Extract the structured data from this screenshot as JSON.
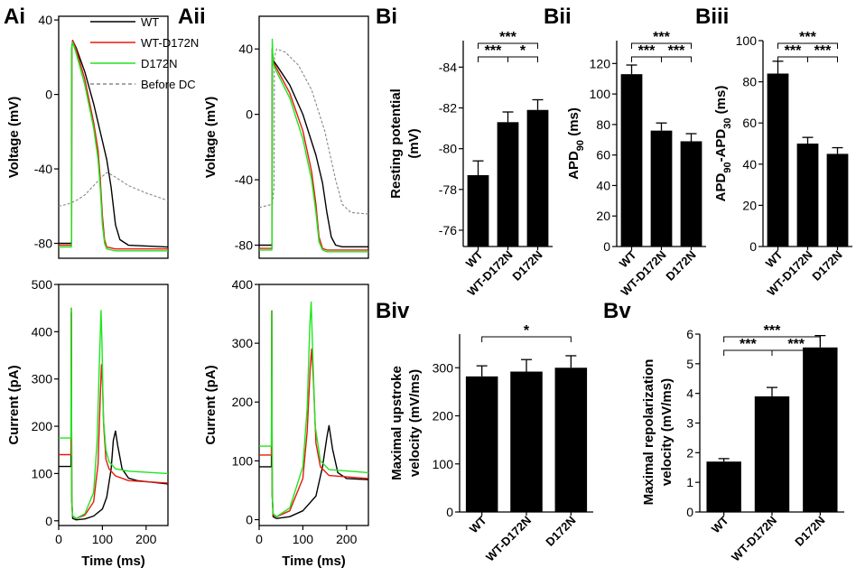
{
  "panel_labels": {
    "Ai": "Ai",
    "Aii": "Aii",
    "Bi": "Bi",
    "Bii": "Bii",
    "Biii": "Biii",
    "Biv": "Biv",
    "Bv": "Bv"
  },
  "colors": {
    "WT": "#000000",
    "WT-D172N": "#e8180c",
    "D172N": "#1ee61e",
    "Before DC": "#888888",
    "bar": "#000000"
  },
  "legend": [
    {
      "label": "WT",
      "color": "#000000",
      "dash": false
    },
    {
      "label": "WT-D172N",
      "color": "#e8180c",
      "dash": false
    },
    {
      "label": "D172N",
      "color": "#1ee61e",
      "dash": false
    },
    {
      "label": "Before DC",
      "color": "#888888",
      "dash": true
    }
  ],
  "chart_data": [
    {
      "id": "Ai_voltage",
      "type": "line",
      "ylabel": "Voltage (mV)",
      "xlim": [
        0,
        250
      ],
      "ylim": [
        -88,
        42
      ],
      "yticks": [
        -80,
        -40,
        0,
        40
      ],
      "xticks": [],
      "series": [
        {
          "name": "WT",
          "x": [
            0,
            29,
            29.5,
            30,
            32,
            40,
            60,
            80,
            100,
            110,
            120,
            125,
            130,
            140,
            160,
            250
          ],
          "y": [
            -80,
            -80,
            -78,
            25,
            29,
            25,
            12,
            -5,
            -25,
            -35,
            -50,
            -60,
            -70,
            -78,
            -81,
            -82
          ]
        },
        {
          "name": "WT-D172N",
          "x": [
            0,
            29,
            29.5,
            30,
            32,
            40,
            60,
            80,
            90,
            95,
            100,
            105,
            110,
            130,
            250
          ],
          "y": [
            -81,
            -81,
            -79,
            25,
            29,
            24,
            8,
            -15,
            -30,
            -45,
            -65,
            -78,
            -82,
            -83,
            -83
          ]
        },
        {
          "name": "D172N",
          "x": [
            0,
            29,
            29.5,
            30,
            32,
            40,
            60,
            80,
            90,
            95,
            100,
            105,
            110,
            130,
            250
          ],
          "y": [
            -82,
            -82,
            -80,
            25,
            28,
            22,
            5,
            -18,
            -35,
            -50,
            -70,
            -80,
            -83,
            -84,
            -84
          ]
        },
        {
          "name": "Before DC",
          "x": [
            0,
            20,
            40,
            60,
            80,
            100,
            110,
            120,
            140,
            160,
            200,
            250
          ],
          "y": [
            -60,
            -59,
            -57,
            -54,
            -49,
            -44,
            -42,
            -43,
            -46,
            -49,
            -53,
            -57
          ]
        }
      ]
    },
    {
      "id": "Aii_voltage",
      "type": "line",
      "ylabel": "Voltage (mV)",
      "xlim": [
        0,
        250
      ],
      "ylim": [
        -88,
        60
      ],
      "yticks": [
        -80,
        -40,
        0,
        40
      ],
      "xticks": [],
      "series": [
        {
          "name": "WT",
          "x": [
            0,
            29,
            29.5,
            30,
            32,
            40,
            70,
            100,
            130,
            145,
            155,
            165,
            175,
            190,
            250
          ],
          "y": [
            -80,
            -80,
            -78,
            40,
            33,
            30,
            18,
            0,
            -25,
            -42,
            -60,
            -75,
            -80,
            -81,
            -81
          ]
        },
        {
          "name": "WT-D172N",
          "x": [
            0,
            29,
            29.5,
            30,
            32,
            40,
            70,
            100,
            120,
            130,
            137,
            145,
            155,
            170,
            250
          ],
          "y": [
            -82,
            -82,
            -80,
            40,
            32,
            28,
            13,
            -10,
            -35,
            -55,
            -75,
            -82,
            -83,
            -83,
            -83
          ]
        },
        {
          "name": "D172N",
          "x": [
            0,
            29,
            29.5,
            30,
            32,
            40,
            70,
            100,
            120,
            130,
            137,
            145,
            155,
            170,
            250
          ],
          "y": [
            -83,
            -83,
            -81,
            46,
            31,
            26,
            10,
            -15,
            -40,
            -60,
            -78,
            -83,
            -84,
            -84,
            -84
          ]
        },
        {
          "name": "Before DC",
          "x": [
            0,
            30,
            34,
            35,
            40,
            60,
            90,
            120,
            150,
            175,
            190,
            210,
            250
          ],
          "y": [
            -57,
            -55,
            -45,
            35,
            40,
            38,
            30,
            15,
            -10,
            -40,
            -55,
            -60,
            -61
          ]
        }
      ]
    },
    {
      "id": "Ai_current",
      "type": "line",
      "xlabel": "Time (ms)",
      "ylabel": "Current (pA)",
      "xlim": [
        0,
        250
      ],
      "ylim": [
        -10,
        500
      ],
      "yticks": [
        0,
        100,
        200,
        300,
        400,
        500
      ],
      "xticks": [
        0,
        100,
        200
      ],
      "series": [
        {
          "name": "WT",
          "x": [
            0,
            28,
            29,
            30,
            32,
            40,
            60,
            80,
            100,
            110,
            120,
            125,
            130,
            135,
            145,
            160,
            180,
            250
          ],
          "y": [
            115,
            115,
            440,
            40,
            5,
            2,
            4,
            10,
            25,
            50,
            110,
            170,
            190,
            160,
            110,
            90,
            85,
            78
          ]
        },
        {
          "name": "WT-D172N",
          "x": [
            0,
            28,
            29,
            30,
            32,
            40,
            60,
            80,
            90,
            95,
            98,
            100,
            103,
            108,
            115,
            130,
            160,
            250
          ],
          "y": [
            140,
            140,
            450,
            45,
            10,
            5,
            12,
            40,
            120,
            260,
            330,
            300,
            200,
            130,
            110,
            95,
            85,
            80
          ]
        },
        {
          "name": "D172N",
          "x": [
            0,
            28,
            29,
            30,
            32,
            40,
            60,
            80,
            88,
            93,
            97,
            99,
            102,
            108,
            115,
            130,
            160,
            250
          ],
          "y": [
            175,
            175,
            450,
            40,
            10,
            5,
            15,
            60,
            170,
            330,
            445,
            380,
            220,
            150,
            125,
            110,
            105,
            100
          ]
        }
      ]
    },
    {
      "id": "Aii_current",
      "type": "line",
      "xlabel": "Time (ms)",
      "ylabel": "Current (pA)",
      "xlim": [
        0,
        250
      ],
      "ylim": [
        -10,
        400
      ],
      "yticks": [
        0,
        100,
        200,
        300,
        400
      ],
      "xticks": [
        0,
        100,
        200
      ],
      "series": [
        {
          "name": "WT",
          "x": [
            0,
            28,
            29,
            30,
            32,
            40,
            70,
            100,
            130,
            145,
            155,
            160,
            168,
            180,
            200,
            250
          ],
          "y": [
            90,
            90,
            355,
            40,
            5,
            2,
            5,
            15,
            40,
            90,
            140,
            160,
            120,
            80,
            70,
            68
          ]
        },
        {
          "name": "WT-D172N",
          "x": [
            0,
            28,
            29,
            30,
            32,
            40,
            70,
            100,
            110,
            117,
            120,
            124,
            130,
            140,
            160,
            250
          ],
          "y": [
            110,
            110,
            355,
            45,
            8,
            5,
            15,
            70,
            150,
            260,
            290,
            240,
            130,
            90,
            75,
            70
          ]
        },
        {
          "name": "D172N",
          "x": [
            0,
            28,
            29,
            30,
            32,
            40,
            70,
            100,
            110,
            116,
            119,
            122,
            128,
            140,
            160,
            250
          ],
          "y": [
            125,
            125,
            355,
            40,
            10,
            5,
            20,
            90,
            190,
            330,
            370,
            300,
            160,
            100,
            85,
            80
          ]
        }
      ]
    },
    {
      "id": "Bi",
      "type": "bar",
      "ylabel": "Resting potential (mV)",
      "categories": [
        "WT",
        "WT-D172N",
        "D172N"
      ],
      "values": [
        -78.7,
        -81.3,
        -81.9
      ],
      "errors": [
        0.7,
        0.5,
        0.5
      ],
      "ylim": [
        -75.2,
        -85.3
      ],
      "yticks": [
        -76,
        -78,
        -80,
        -82,
        -84
      ],
      "significance": [
        {
          "pair": [
            0,
            1
          ],
          "label": "***"
        },
        {
          "pair": [
            1,
            2
          ],
          "label": "*"
        },
        {
          "pair": [
            0,
            2
          ],
          "label": "***"
        }
      ]
    },
    {
      "id": "Bii",
      "type": "bar",
      "ylabel": "APD90 (ms)",
      "categories": [
        "WT",
        "WT-D172N",
        "D172N"
      ],
      "values": [
        113,
        76,
        69
      ],
      "errors": [
        6,
        5,
        5
      ],
      "ylim": [
        0,
        135
      ],
      "yticks": [
        0,
        20,
        40,
        60,
        80,
        100,
        120
      ],
      "significance": [
        {
          "pair": [
            0,
            1
          ],
          "label": "***"
        },
        {
          "pair": [
            1,
            2
          ],
          "label": "***"
        },
        {
          "pair": [
            0,
            2
          ],
          "label": "***"
        }
      ]
    },
    {
      "id": "Biii",
      "type": "bar",
      "ylabel": "APD90-APD30 (ms)",
      "categories": [
        "WT",
        "WT-D172N",
        "D172N"
      ],
      "values": [
        84,
        50,
        45
      ],
      "errors": [
        6,
        3,
        3
      ],
      "ylim": [
        0,
        100
      ],
      "yticks": [
        0,
        20,
        40,
        60,
        80,
        100
      ],
      "significance": [
        {
          "pair": [
            0,
            1
          ],
          "label": "***"
        },
        {
          "pair": [
            1,
            2
          ],
          "label": "***"
        },
        {
          "pair": [
            0,
            2
          ],
          "label": "***"
        }
      ]
    },
    {
      "id": "Biv",
      "type": "bar",
      "ylabel": "Maximal upstroke velocity (mV/ms)",
      "categories": [
        "WT",
        "WT-D172N",
        "D172N"
      ],
      "values": [
        282,
        292,
        300
      ],
      "errors": [
        22,
        25,
        25
      ],
      "ylim": [
        0,
        370
      ],
      "yticks": [
        0,
        100,
        200,
        300
      ],
      "significance": [
        {
          "pair": [
            0,
            2
          ],
          "label": "*"
        }
      ]
    },
    {
      "id": "Bv",
      "type": "bar",
      "ylabel": "Maximal repolarization velocity (mV/ms)",
      "categories": [
        "WT",
        "WT-D172N",
        "D172N"
      ],
      "values": [
        1.7,
        3.9,
        5.55
      ],
      "errors": [
        0.1,
        0.3,
        0.4
      ],
      "ylim": [
        0,
        6
      ],
      "yticks": [
        0,
        1,
        2,
        3,
        4,
        5,
        6
      ],
      "significance": [
        {
          "pair": [
            0,
            1
          ],
          "label": "***"
        },
        {
          "pair": [
            1,
            2
          ],
          "label": "***"
        },
        {
          "pair": [
            0,
            2
          ],
          "label": "***"
        }
      ]
    }
  ]
}
